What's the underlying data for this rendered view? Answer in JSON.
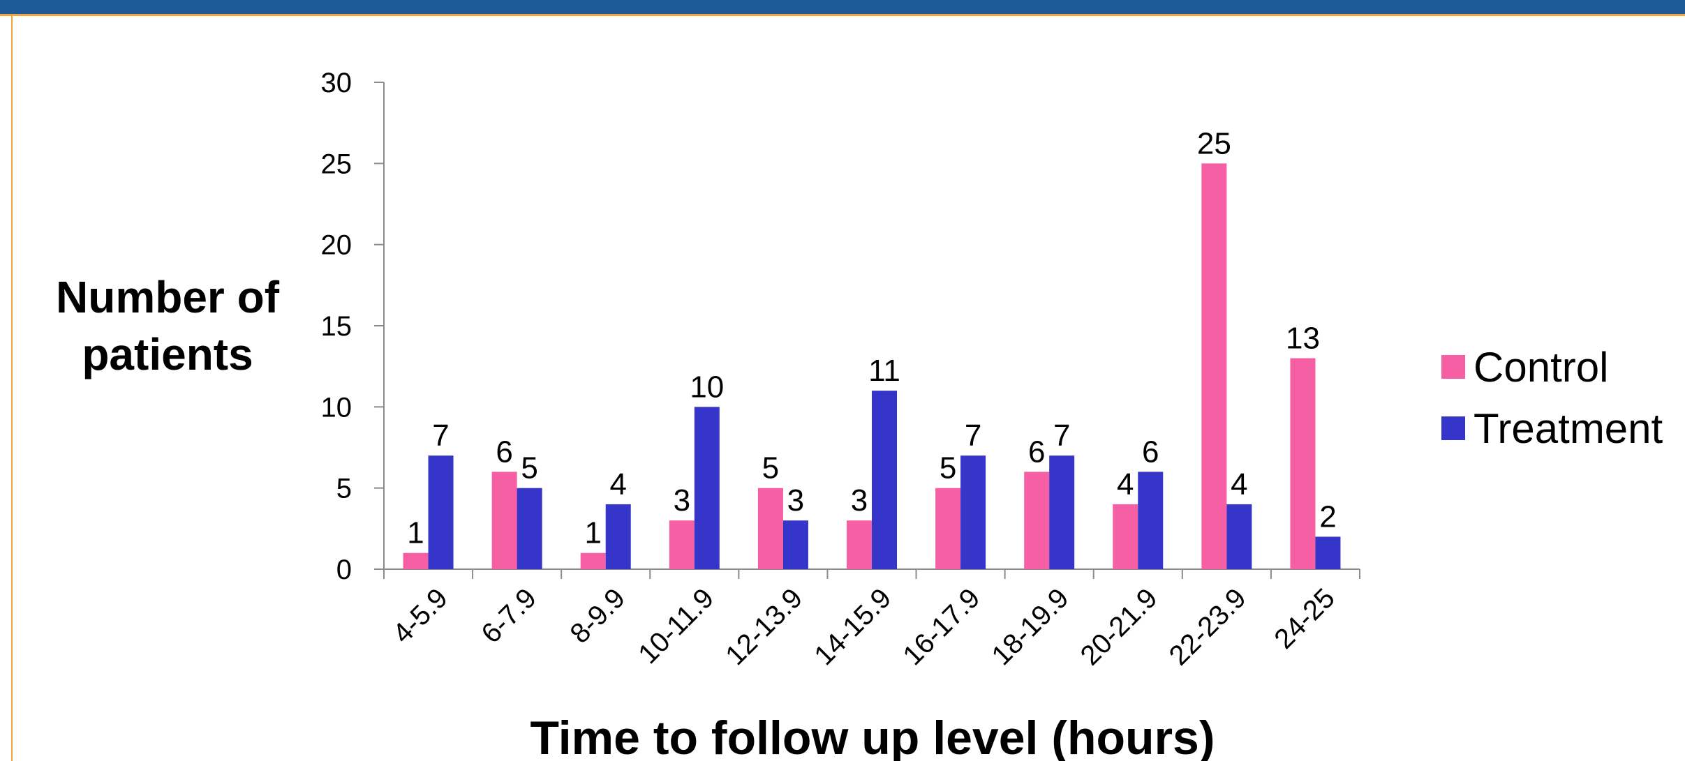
{
  "chart_data": {
    "type": "bar",
    "title": "",
    "xlabel": "Time to follow up level (hours)",
    "ylabel_lines": [
      "Number of",
      "patients"
    ],
    "categories": [
      "4-5.9",
      "6-7.9",
      "8-9.9",
      "10-11.9",
      "12-13.9",
      "14-15.9",
      "16-17.9",
      "18-19.9",
      "20-21.9",
      "22-23.9",
      "24-25"
    ],
    "series": [
      {
        "name": "Control",
        "color": "#f65fa4",
        "values": [
          1,
          6,
          1,
          3,
          5,
          3,
          5,
          6,
          4,
          25,
          13
        ]
      },
      {
        "name": "Treatment",
        "color": "#3535c9",
        "values": [
          7,
          5,
          4,
          10,
          3,
          11,
          7,
          7,
          6,
          4,
          2
        ]
      }
    ],
    "ylim": [
      0,
      30
    ],
    "yticks": [
      0,
      5,
      10,
      15,
      20,
      25,
      30
    ],
    "grid": false,
    "legend_position": "right",
    "data_labels": true
  },
  "colors": {
    "title_bar": "#1f5a98",
    "accent_border": "#f3a43b",
    "axis": "#8c8c8c"
  }
}
